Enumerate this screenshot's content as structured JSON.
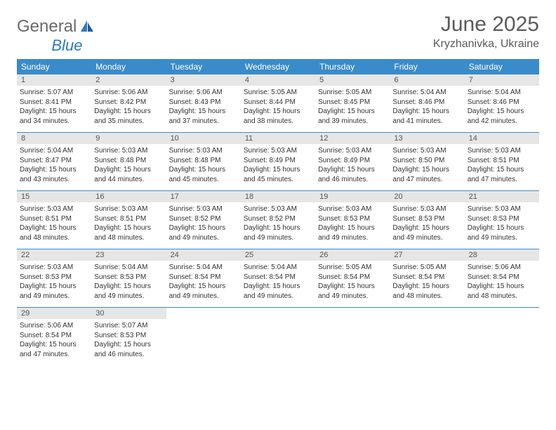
{
  "brand": {
    "part1": "General",
    "part2": "Blue"
  },
  "title": "June 2025",
  "location": "Kryzhanivka, Ukraine",
  "colors": {
    "header_bg": "#3a8bc9",
    "header_text": "#ffffff",
    "daynum_bg": "#e6e6e6",
    "week_border": "#3a8bc9",
    "brand_gray": "#6a6a6a",
    "brand_blue": "#2b7bbf",
    "title_color": "#5b5b5b"
  },
  "weekdays": [
    "Sunday",
    "Monday",
    "Tuesday",
    "Wednesday",
    "Thursday",
    "Friday",
    "Saturday"
  ],
  "weeks": [
    [
      {
        "day": "1",
        "sunrise": "Sunrise: 5:07 AM",
        "sunset": "Sunset: 8:41 PM",
        "daylight": "Daylight: 15 hours and 34 minutes."
      },
      {
        "day": "2",
        "sunrise": "Sunrise: 5:06 AM",
        "sunset": "Sunset: 8:42 PM",
        "daylight": "Daylight: 15 hours and 35 minutes."
      },
      {
        "day": "3",
        "sunrise": "Sunrise: 5:06 AM",
        "sunset": "Sunset: 8:43 PM",
        "daylight": "Daylight: 15 hours and 37 minutes."
      },
      {
        "day": "4",
        "sunrise": "Sunrise: 5:05 AM",
        "sunset": "Sunset: 8:44 PM",
        "daylight": "Daylight: 15 hours and 38 minutes."
      },
      {
        "day": "5",
        "sunrise": "Sunrise: 5:05 AM",
        "sunset": "Sunset: 8:45 PM",
        "daylight": "Daylight: 15 hours and 39 minutes."
      },
      {
        "day": "6",
        "sunrise": "Sunrise: 5:04 AM",
        "sunset": "Sunset: 8:46 PM",
        "daylight": "Daylight: 15 hours and 41 minutes."
      },
      {
        "day": "7",
        "sunrise": "Sunrise: 5:04 AM",
        "sunset": "Sunset: 8:46 PM",
        "daylight": "Daylight: 15 hours and 42 minutes."
      }
    ],
    [
      {
        "day": "8",
        "sunrise": "Sunrise: 5:04 AM",
        "sunset": "Sunset: 8:47 PM",
        "daylight": "Daylight: 15 hours and 43 minutes."
      },
      {
        "day": "9",
        "sunrise": "Sunrise: 5:03 AM",
        "sunset": "Sunset: 8:48 PM",
        "daylight": "Daylight: 15 hours and 44 minutes."
      },
      {
        "day": "10",
        "sunrise": "Sunrise: 5:03 AM",
        "sunset": "Sunset: 8:48 PM",
        "daylight": "Daylight: 15 hours and 45 minutes."
      },
      {
        "day": "11",
        "sunrise": "Sunrise: 5:03 AM",
        "sunset": "Sunset: 8:49 PM",
        "daylight": "Daylight: 15 hours and 45 minutes."
      },
      {
        "day": "12",
        "sunrise": "Sunrise: 5:03 AM",
        "sunset": "Sunset: 8:49 PM",
        "daylight": "Daylight: 15 hours and 46 minutes."
      },
      {
        "day": "13",
        "sunrise": "Sunrise: 5:03 AM",
        "sunset": "Sunset: 8:50 PM",
        "daylight": "Daylight: 15 hours and 47 minutes."
      },
      {
        "day": "14",
        "sunrise": "Sunrise: 5:03 AM",
        "sunset": "Sunset: 8:51 PM",
        "daylight": "Daylight: 15 hours and 47 minutes."
      }
    ],
    [
      {
        "day": "15",
        "sunrise": "Sunrise: 5:03 AM",
        "sunset": "Sunset: 8:51 PM",
        "daylight": "Daylight: 15 hours and 48 minutes."
      },
      {
        "day": "16",
        "sunrise": "Sunrise: 5:03 AM",
        "sunset": "Sunset: 8:51 PM",
        "daylight": "Daylight: 15 hours and 48 minutes."
      },
      {
        "day": "17",
        "sunrise": "Sunrise: 5:03 AM",
        "sunset": "Sunset: 8:52 PM",
        "daylight": "Daylight: 15 hours and 49 minutes."
      },
      {
        "day": "18",
        "sunrise": "Sunrise: 5:03 AM",
        "sunset": "Sunset: 8:52 PM",
        "daylight": "Daylight: 15 hours and 49 minutes."
      },
      {
        "day": "19",
        "sunrise": "Sunrise: 5:03 AM",
        "sunset": "Sunset: 8:53 PM",
        "daylight": "Daylight: 15 hours and 49 minutes."
      },
      {
        "day": "20",
        "sunrise": "Sunrise: 5:03 AM",
        "sunset": "Sunset: 8:53 PM",
        "daylight": "Daylight: 15 hours and 49 minutes."
      },
      {
        "day": "21",
        "sunrise": "Sunrise: 5:03 AM",
        "sunset": "Sunset: 8:53 PM",
        "daylight": "Daylight: 15 hours and 49 minutes."
      }
    ],
    [
      {
        "day": "22",
        "sunrise": "Sunrise: 5:03 AM",
        "sunset": "Sunset: 8:53 PM",
        "daylight": "Daylight: 15 hours and 49 minutes."
      },
      {
        "day": "23",
        "sunrise": "Sunrise: 5:04 AM",
        "sunset": "Sunset: 8:53 PM",
        "daylight": "Daylight: 15 hours and 49 minutes."
      },
      {
        "day": "24",
        "sunrise": "Sunrise: 5:04 AM",
        "sunset": "Sunset: 8:54 PM",
        "daylight": "Daylight: 15 hours and 49 minutes."
      },
      {
        "day": "25",
        "sunrise": "Sunrise: 5:04 AM",
        "sunset": "Sunset: 8:54 PM",
        "daylight": "Daylight: 15 hours and 49 minutes."
      },
      {
        "day": "26",
        "sunrise": "Sunrise: 5:05 AM",
        "sunset": "Sunset: 8:54 PM",
        "daylight": "Daylight: 15 hours and 49 minutes."
      },
      {
        "day": "27",
        "sunrise": "Sunrise: 5:05 AM",
        "sunset": "Sunset: 8:54 PM",
        "daylight": "Daylight: 15 hours and 48 minutes."
      },
      {
        "day": "28",
        "sunrise": "Sunrise: 5:06 AM",
        "sunset": "Sunset: 8:54 PM",
        "daylight": "Daylight: 15 hours and 48 minutes."
      }
    ],
    [
      {
        "day": "29",
        "sunrise": "Sunrise: 5:06 AM",
        "sunset": "Sunset: 8:54 PM",
        "daylight": "Daylight: 15 hours and 47 minutes."
      },
      {
        "day": "30",
        "sunrise": "Sunrise: 5:07 AM",
        "sunset": "Sunset: 8:53 PM",
        "daylight": "Daylight: 15 hours and 46 minutes."
      },
      null,
      null,
      null,
      null,
      null
    ]
  ]
}
